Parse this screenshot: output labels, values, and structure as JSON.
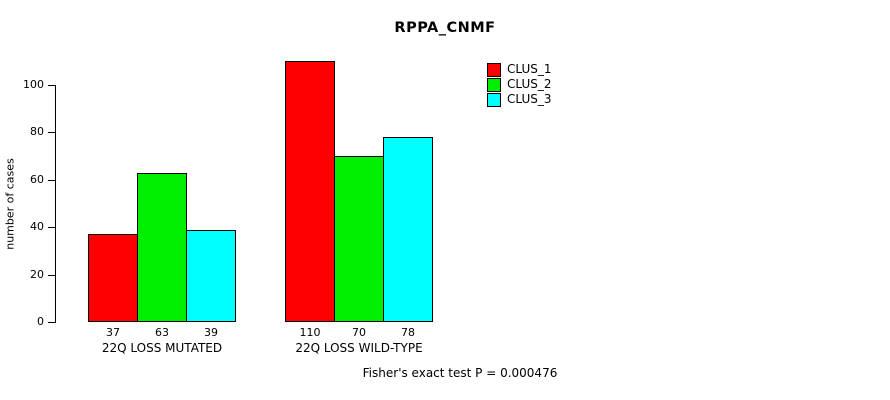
{
  "title": "RPPA_CNMF",
  "ylabel": "number of cases",
  "footer": "Fisher's exact test P = 0.000476",
  "chart_data": {
    "type": "bar",
    "title": "RPPA_CNMF",
    "xlabel": "",
    "ylabel": "number of cases",
    "categories": [
      "22Q LOSS MUTATED",
      "22Q LOSS WILD-TYPE"
    ],
    "series": [
      {
        "name": "CLUS_1",
        "color": "#FF0000",
        "values": [
          37,
          110
        ]
      },
      {
        "name": "CLUS_2",
        "color": "#00EE00",
        "values": [
          63,
          70
        ]
      },
      {
        "name": "CLUS_3",
        "color": "#00FFFF",
        "values": [
          39,
          78
        ]
      }
    ],
    "bar_value_labels": [
      [
        37,
        63,
        39
      ],
      [
        110,
        70,
        78
      ]
    ],
    "yticks": [
      0,
      20,
      40,
      60,
      80,
      100
    ],
    "ylim": [
      0,
      115
    ],
    "grid": false,
    "legend_position": "top-right",
    "annotation": "Fisher's exact test P = 0.000476"
  }
}
